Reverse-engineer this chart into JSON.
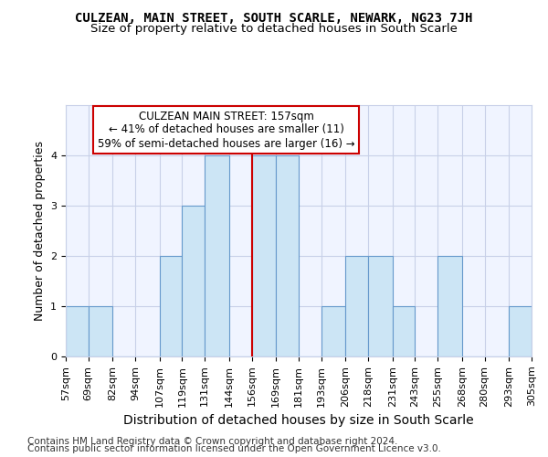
{
  "title": "CULZEAN, MAIN STREET, SOUTH SCARLE, NEWARK, NG23 7JH",
  "subtitle": "Size of property relative to detached houses in South Scarle",
  "xlabel": "Distribution of detached houses by size in South Scarle",
  "ylabel": "Number of detached properties",
  "footer_line1": "Contains HM Land Registry data © Crown copyright and database right 2024.",
  "footer_line2": "Contains public sector information licensed under the Open Government Licence v3.0.",
  "annotation_title": "CULZEAN MAIN STREET: 157sqm",
  "annotation_line2": "← 41% of detached houses are smaller (11)",
  "annotation_line3": "59% of semi-detached houses are larger (16) →",
  "bin_edges": [
    57,
    69,
    82,
    94,
    107,
    119,
    131,
    144,
    156,
    169,
    181,
    193,
    206,
    218,
    231,
    243,
    255,
    268,
    280,
    293,
    305
  ],
  "bar_heights": [
    1,
    1,
    0,
    0,
    2,
    3,
    4,
    0,
    4,
    4,
    0,
    1,
    2,
    2,
    1,
    0,
    2,
    0,
    0,
    1
  ],
  "bar_color": "#cce5f5",
  "bar_edge_color": "#6699cc",
  "vline_color": "#cc0000",
  "vline_x": 156,
  "ylim": [
    0,
    5
  ],
  "yticks": [
    0,
    1,
    2,
    3,
    4
  ],
  "bg_color": "#f0f4ff",
  "grid_color": "#c8d0e8",
  "annotation_box_edge": "#cc0000",
  "title_fontsize": 10,
  "subtitle_fontsize": 9.5,
  "ylabel_fontsize": 9,
  "xlabel_fontsize": 10,
  "tick_fontsize": 8,
  "annotation_fontsize": 8.5,
  "footer_fontsize": 7.5
}
